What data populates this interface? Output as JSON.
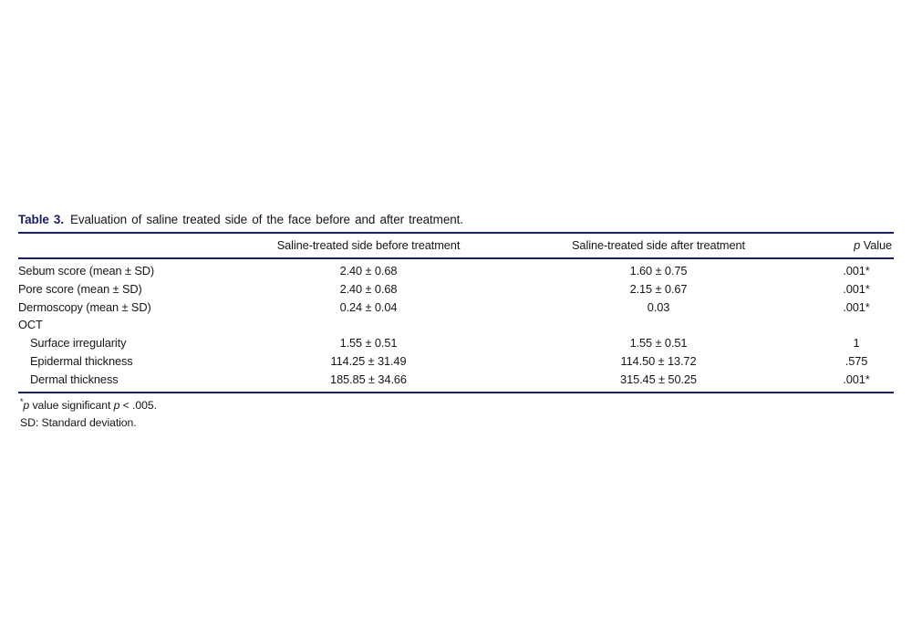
{
  "page": {
    "background_color": "#ffffff",
    "accent_color": "#1b2060",
    "text_color": "#161616"
  },
  "table": {
    "title_label": "Table 3.",
    "title_text": "Evaluation of saline treated side of the face before and after treatment.",
    "columns": {
      "label": "",
      "before": "Saline-treated side before treatment",
      "after": "Saline-treated side after treatment",
      "p_italic": "p",
      "p_rest": "Value"
    },
    "rows": [
      {
        "label": "Sebum score (mean ± SD)",
        "indent": false,
        "before": "2.40 ± 0.68",
        "after": "1.60 ± 0.75",
        "p": ".001*"
      },
      {
        "label": "Pore score (mean ± SD)",
        "indent": false,
        "before": "2.40 ± 0.68",
        "after": "2.15 ± 0.67",
        "p": ".001*"
      },
      {
        "label": "Dermoscopy (mean ± SD)",
        "indent": false,
        "before": "0.24 ± 0.04",
        "after": "0.03",
        "p": ".001*"
      },
      {
        "label": "OCT",
        "indent": false,
        "before": "",
        "after": "",
        "p": ""
      },
      {
        "label": "Surface irregularity",
        "indent": true,
        "before": "1.55 ± 0.51",
        "after": "1.55 ± 0.51",
        "p": "1"
      },
      {
        "label": "Epidermal thickness",
        "indent": true,
        "before": "114.25 ± 31.49",
        "after": "114.50 ± 13.72",
        "p": ".575"
      },
      {
        "label": "Dermal thickness",
        "indent": true,
        "before": "185.85 ± 34.66",
        "after": "315.45 ± 50.25",
        "p": ".001*"
      }
    ],
    "footnotes": {
      "note1": {
        "marker": "*",
        "p1": "p",
        "t1": " value significant ",
        "p2": "p",
        "t2": " < .005."
      },
      "note2": "SD: Standard deviation."
    }
  }
}
